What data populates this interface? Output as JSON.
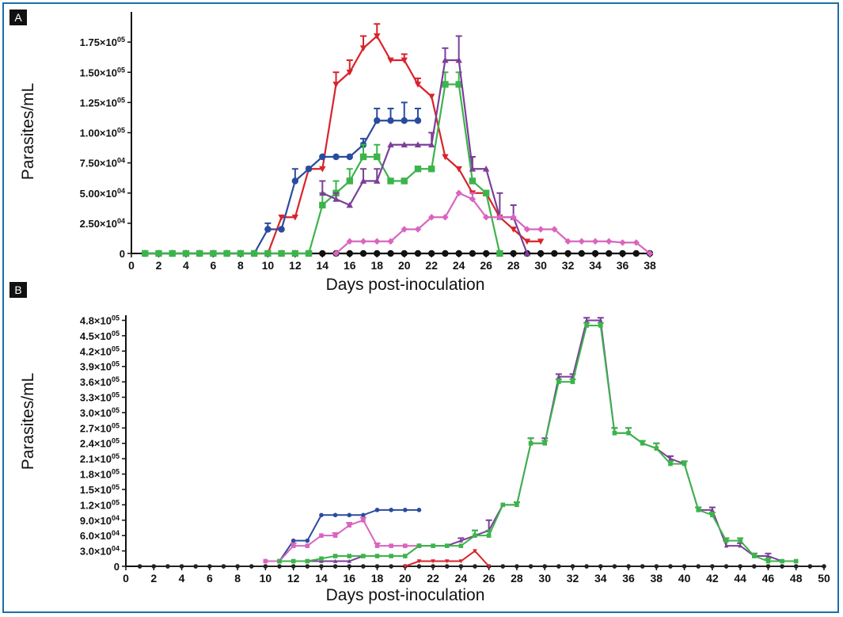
{
  "chart_data": [
    {
      "panel": "A",
      "type": "line",
      "xlabel": "Days post-inoculation",
      "ylabel": "Parasites/mL",
      "xlim": [
        0,
        38
      ],
      "ylim": [
        0,
        200000
      ],
      "xticks": [
        "0",
        "2",
        "4",
        "6",
        "8",
        "10",
        "12",
        "14",
        "16",
        "18",
        "20",
        "22",
        "24",
        "26",
        "28",
        "30",
        "32",
        "34",
        "36",
        "38"
      ],
      "yticks": [
        {
          "value": 0,
          "label": "0"
        },
        {
          "value": 25000,
          "mantissa": "2.50",
          "exp": "04"
        },
        {
          "value": 50000,
          "mantissa": "5.00",
          "exp": "04"
        },
        {
          "value": 75000,
          "mantissa": "7.50",
          "exp": "04"
        },
        {
          "value": 100000,
          "mantissa": "1.00",
          "exp": "05"
        },
        {
          "value": 125000,
          "mantissa": "1.25",
          "exp": "05"
        },
        {
          "value": 150000,
          "mantissa": "1.50",
          "exp": "05"
        },
        {
          "value": 175000,
          "mantissa": "1.75",
          "exp": "05"
        }
      ],
      "series": [
        {
          "name": "black",
          "color": "#111111",
          "marker": "circle",
          "x": [
            1,
            2,
            3,
            4,
            5,
            6,
            7,
            8,
            9,
            10,
            11,
            12,
            13,
            14,
            15,
            16,
            17,
            18,
            19,
            20,
            21,
            22,
            23,
            24,
            25,
            26,
            27,
            28,
            29,
            30,
            31,
            32,
            33,
            34,
            35,
            36,
            37,
            38
          ],
          "y": [
            0,
            0,
            0,
            0,
            0,
            0,
            0,
            0,
            0,
            0,
            0,
            0,
            0,
            0,
            0,
            0,
            0,
            0,
            0,
            0,
            0,
            0,
            0,
            0,
            0,
            0,
            0,
            0,
            0,
            0,
            0,
            0,
            0,
            0,
            0,
            0,
            0,
            0
          ]
        },
        {
          "name": "red",
          "color": "#d8232a",
          "marker": "triangle-down",
          "x": [
            1,
            2,
            3,
            4,
            5,
            6,
            7,
            8,
            9,
            10,
            11,
            12,
            13,
            14,
            15,
            16,
            17,
            18,
            19,
            20,
            21,
            22,
            23,
            24,
            25,
            26,
            27,
            28,
            29,
            30
          ],
          "y": [
            0,
            0,
            0,
            0,
            0,
            0,
            0,
            0,
            0,
            0,
            30000,
            30000,
            70000,
            70000,
            140000,
            150000,
            170000,
            180000,
            160000,
            160000,
            140000,
            130000,
            80000,
            70000,
            50000,
            50000,
            30000,
            20000,
            10000,
            10000
          ],
          "err": [
            0,
            0,
            0,
            0,
            0,
            0,
            0,
            0,
            0,
            0,
            0,
            0,
            0,
            0,
            10000,
            10000,
            10000,
            10000,
            0,
            5000,
            5000,
            0,
            0,
            0,
            0,
            0,
            0,
            0,
            0,
            0
          ]
        },
        {
          "name": "blue",
          "color": "#2a4c9e",
          "marker": "circle",
          "x": [
            1,
            2,
            3,
            4,
            5,
            6,
            7,
            8,
            9,
            10,
            11,
            12,
            13,
            14,
            15,
            16,
            17,
            18,
            19,
            20,
            21
          ],
          "y": [
            0,
            0,
            0,
            0,
            0,
            0,
            0,
            0,
            0,
            20000,
            20000,
            60000,
            70000,
            80000,
            80000,
            80000,
            90000,
            110000,
            110000,
            110000,
            110000
          ],
          "err": [
            0,
            0,
            0,
            0,
            0,
            0,
            0,
            0,
            0,
            5000,
            0,
            10000,
            0,
            0,
            0,
            0,
            5000,
            10000,
            10000,
            15000,
            10000
          ]
        },
        {
          "name": "green",
          "color": "#3cb44b",
          "marker": "square",
          "x": [
            1,
            2,
            3,
            4,
            5,
            6,
            7,
            8,
            9,
            10,
            11,
            12,
            13,
            14,
            15,
            16,
            17,
            18,
            19,
            20,
            21,
            22,
            23,
            24,
            25,
            26,
            27
          ],
          "y": [
            0,
            0,
            0,
            0,
            0,
            0,
            0,
            0,
            0,
            0,
            0,
            0,
            0,
            40000,
            50000,
            60000,
            80000,
            80000,
            60000,
            60000,
            70000,
            70000,
            140000,
            140000,
            60000,
            50000,
            0
          ],
          "err": [
            0,
            0,
            0,
            0,
            0,
            0,
            0,
            0,
            0,
            0,
            0,
            0,
            0,
            10000,
            10000,
            10000,
            10000,
            10000,
            0,
            0,
            0,
            0,
            10000,
            10000,
            0,
            0,
            0
          ]
        },
        {
          "name": "purple",
          "color": "#7b3f98",
          "marker": "triangle-up",
          "x": [
            14,
            15,
            16,
            17,
            18,
            19,
            20,
            21,
            22,
            23,
            24,
            25,
            26,
            27,
            28,
            29
          ],
          "y": [
            50000,
            45000,
            40000,
            60000,
            60000,
            90000,
            90000,
            90000,
            90000,
            160000,
            160000,
            70000,
            70000,
            30000,
            30000,
            0
          ],
          "err": [
            10000,
            5000,
            0,
            10000,
            10000,
            0,
            0,
            0,
            10000,
            10000,
            20000,
            10000,
            0,
            20000,
            10000,
            0
          ]
        },
        {
          "name": "pink",
          "color": "#d965c0",
          "marker": "diamond",
          "x": [
            15,
            16,
            17,
            18,
            19,
            20,
            21,
            22,
            23,
            24,
            25,
            26,
            27,
            28,
            29,
            30,
            31,
            32,
            33,
            34,
            35,
            36,
            37,
            38
          ],
          "y": [
            0,
            10000,
            10000,
            10000,
            10000,
            20000,
            20000,
            30000,
            30000,
            50000,
            45000,
            30000,
            30000,
            30000,
            20000,
            20000,
            20000,
            10000,
            10000,
            10000,
            10000,
            9000,
            9000,
            0
          ],
          "err": [
            0,
            0,
            0,
            0,
            0,
            0,
            0,
            0,
            0,
            0,
            5000,
            0,
            0,
            0,
            0,
            0,
            0,
            0,
            0,
            0,
            0,
            0,
            0,
            0
          ]
        }
      ]
    },
    {
      "panel": "B",
      "type": "line",
      "xlabel": "Days post-inoculation",
      "ylabel": "Parasites/mL",
      "xlim": [
        0,
        50
      ],
      "ylim": [
        0,
        490000
      ],
      "xticks": [
        "0",
        "2",
        "4",
        "6",
        "8",
        "10",
        "12",
        "14",
        "16",
        "18",
        "20",
        "22",
        "24",
        "26",
        "28",
        "30",
        "32",
        "34",
        "36",
        "38",
        "40",
        "42",
        "44",
        "46",
        "48",
        "50"
      ],
      "yticks": [
        {
          "value": 0,
          "label": "0"
        },
        {
          "value": 30000,
          "mantissa": "3.0",
          "exp": "04"
        },
        {
          "value": 60000,
          "mantissa": "6.0",
          "exp": "04"
        },
        {
          "value": 90000,
          "mantissa": "9.0",
          "exp": "04"
        },
        {
          "value": 120000,
          "mantissa": "1.2",
          "exp": "05"
        },
        {
          "value": 150000,
          "mantissa": "1.5",
          "exp": "05"
        },
        {
          "value": 180000,
          "mantissa": "1.8",
          "exp": "05"
        },
        {
          "value": 210000,
          "mantissa": "2.1",
          "exp": "05"
        },
        {
          "value": 240000,
          "mantissa": "2.4",
          "exp": "05"
        },
        {
          "value": 270000,
          "mantissa": "2.7",
          "exp": "05"
        },
        {
          "value": 300000,
          "mantissa": "3.0",
          "exp": "05"
        },
        {
          "value": 330000,
          "mantissa": "3.3",
          "exp": "05"
        },
        {
          "value": 360000,
          "mantissa": "3.6",
          "exp": "05"
        },
        {
          "value": 390000,
          "mantissa": "3.9",
          "exp": "05"
        },
        {
          "value": 420000,
          "mantissa": "4.2",
          "exp": "05"
        },
        {
          "value": 450000,
          "mantissa": "4.5",
          "exp": "05"
        },
        {
          "value": 480000,
          "mantissa": "4.8",
          "exp": "05"
        }
      ],
      "series": [
        {
          "name": "black",
          "color": "#222222",
          "marker": "circle",
          "x": [
            1,
            2,
            3,
            4,
            5,
            6,
            7,
            8,
            9,
            10,
            11,
            12,
            13,
            14,
            15,
            16,
            17,
            18,
            19,
            20,
            21,
            22,
            23,
            24,
            25,
            26,
            27,
            28,
            29,
            30,
            31,
            32,
            33,
            34,
            35,
            36,
            37,
            38,
            39,
            40,
            41,
            42,
            43,
            44,
            45,
            46,
            47,
            48,
            49,
            50
          ],
          "y": [
            0,
            0,
            0,
            0,
            0,
            0,
            0,
            0,
            0,
            0,
            0,
            0,
            0,
            0,
            0,
            0,
            0,
            0,
            0,
            0,
            0,
            0,
            0,
            0,
            0,
            0,
            0,
            0,
            0,
            0,
            0,
            0,
            0,
            0,
            0,
            0,
            0,
            0,
            0,
            0,
            0,
            0,
            0,
            0,
            0,
            0,
            0,
            0,
            0,
            0
          ]
        },
        {
          "name": "red",
          "color": "#d8232a",
          "marker": "triangle-down",
          "x": [
            20,
            21,
            22,
            23,
            24,
            25,
            26
          ],
          "y": [
            0,
            10000,
            10000,
            10000,
            10000,
            30000,
            0
          ]
        },
        {
          "name": "blue",
          "color": "#2a4c9e",
          "marker": "circle",
          "x": [
            10,
            11,
            12,
            13,
            14,
            15,
            16,
            17,
            18,
            19,
            20,
            21
          ],
          "y": [
            10000,
            10000,
            50000,
            50000,
            100000,
            100000,
            100000,
            100000,
            110000,
            110000,
            110000,
            110000
          ]
        },
        {
          "name": "pink",
          "color": "#d965c0",
          "marker": "square",
          "x": [
            10,
            11,
            12,
            13,
            14,
            15,
            16,
            17,
            18,
            19,
            20,
            21
          ],
          "y": [
            10000,
            10000,
            40000,
            40000,
            60000,
            60000,
            80000,
            90000,
            40000,
            40000,
            40000,
            40000
          ],
          "err": [
            0,
            0,
            5000,
            0,
            0,
            5000,
            5000,
            5000,
            5000,
            0,
            0,
            0
          ]
        },
        {
          "name": "purple",
          "color": "#7b3f98",
          "marker": "triangle-up",
          "x": [
            11,
            12,
            13,
            14,
            15,
            16,
            17,
            18,
            19,
            20,
            21,
            22,
            23,
            24,
            25,
            26,
            27,
            28,
            29,
            30,
            31,
            32,
            33,
            34,
            35,
            36,
            37,
            38,
            39,
            40,
            41,
            42,
            43,
            44,
            45,
            46,
            47,
            48
          ],
          "y": [
            10000,
            10000,
            10000,
            10000,
            10000,
            10000,
            20000,
            20000,
            20000,
            20000,
            40000,
            40000,
            40000,
            50000,
            60000,
            70000,
            120000,
            120000,
            240000,
            240000,
            370000,
            370000,
            480000,
            480000,
            260000,
            260000,
            240000,
            230000,
            210000,
            200000,
            110000,
            110000,
            40000,
            40000,
            20000,
            20000,
            10000,
            10000
          ],
          "err": [
            0,
            0,
            0,
            0,
            0,
            0,
            0,
            0,
            0,
            0,
            0,
            0,
            0,
            5000,
            10000,
            20000,
            0,
            5000,
            10000,
            10000,
            5000,
            5000,
            5000,
            5000,
            10000,
            10000,
            5000,
            10000,
            5000,
            5000,
            5000,
            5000,
            10000,
            5000,
            5000,
            5000,
            0,
            0
          ]
        },
        {
          "name": "green",
          "color": "#3cb44b",
          "marker": "square",
          "x": [
            11,
            12,
            13,
            14,
            15,
            16,
            17,
            18,
            19,
            20,
            21,
            22,
            23,
            24,
            25,
            26,
            27,
            28,
            29,
            30,
            31,
            32,
            33,
            34,
            35,
            36,
            37,
            38,
            39,
            40,
            41,
            42,
            43,
            44,
            45,
            46,
            47,
            48
          ],
          "y": [
            10000,
            10000,
            10000,
            15000,
            20000,
            20000,
            20000,
            20000,
            20000,
            20000,
            40000,
            40000,
            40000,
            40000,
            60000,
            60000,
            120000,
            120000,
            240000,
            240000,
            360000,
            360000,
            470000,
            470000,
            260000,
            260000,
            240000,
            230000,
            200000,
            200000,
            110000,
            100000,
            50000,
            50000,
            20000,
            10000,
            10000,
            10000
          ],
          "err": [
            0,
            0,
            0,
            0,
            0,
            0,
            0,
            0,
            0,
            0,
            0,
            0,
            0,
            0,
            10000,
            10000,
            0,
            5000,
            10000,
            5000,
            5000,
            5000,
            5000,
            5000,
            10000,
            10000,
            5000,
            10000,
            5000,
            5000,
            5000,
            5000,
            5000,
            5000,
            5000,
            5000,
            0,
            0
          ]
        }
      ]
    }
  ]
}
